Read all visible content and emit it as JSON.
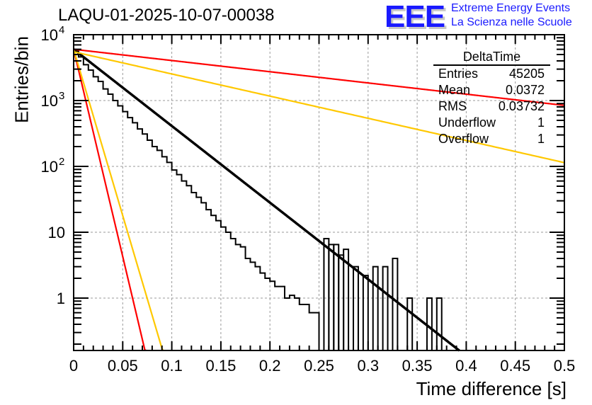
{
  "title": "LAQU-01-2025-10-07-00038",
  "logo": {
    "mark": "EEE",
    "line1": "Extreme Energy Events",
    "line2": "La Scienza nelle Scuole",
    "color": "#1a1aff"
  },
  "stats_box": {
    "name": "DeltaTime",
    "rows": [
      {
        "label": "Entries",
        "value": "45205"
      },
      {
        "label": "Mean",
        "value": "0.0372"
      },
      {
        "label": "RMS",
        "value": "0.03732"
      },
      {
        "label": "Underflow",
        "value": "1"
      },
      {
        "label": "Overflow",
        "value": "1"
      }
    ]
  },
  "chart_data": {
    "type": "histogram",
    "title": "LAQU-01-2025-10-07-00038",
    "xlabel": "Time difference [s]",
    "ylabel": "Entries/bin",
    "xlim": [
      0,
      0.5
    ],
    "ylim": [
      0.16,
      10000
    ],
    "yscale": "log",
    "grid": true,
    "x_ticks": [
      "0",
      "0.05",
      "0.1",
      "0.15",
      "0.2",
      "0.25",
      "0.3",
      "0.35",
      "0.4",
      "0.45",
      "0.5"
    ],
    "y_ticks": [
      {
        "value": 10000,
        "label": "10^4"
      },
      {
        "value": 1000,
        "label": "10^3"
      },
      {
        "value": 100,
        "label": "10^2"
      },
      {
        "value": 10,
        "label": "10"
      },
      {
        "value": 1,
        "label": "1"
      }
    ],
    "bin_width": 0.005,
    "histogram": {
      "name": "DeltaTime",
      "color": "#000000",
      "note": "approx. exponential, bins read from plot; zero bins omitted",
      "bins": [
        [
          0.0,
          5700
        ],
        [
          0.005,
          4600
        ],
        [
          0.01,
          3500
        ],
        [
          0.015,
          2900
        ],
        [
          0.02,
          2300
        ],
        [
          0.025,
          1950
        ],
        [
          0.03,
          1500
        ],
        [
          0.035,
          1250
        ],
        [
          0.04,
          1000
        ],
        [
          0.045,
          830
        ],
        [
          0.05,
          680
        ],
        [
          0.055,
          550
        ],
        [
          0.06,
          460
        ],
        [
          0.065,
          370
        ],
        [
          0.07,
          310
        ],
        [
          0.075,
          250
        ],
        [
          0.08,
          200
        ],
        [
          0.085,
          175
        ],
        [
          0.09,
          140
        ],
        [
          0.095,
          115
        ],
        [
          0.1,
          88
        ],
        [
          0.105,
          75
        ],
        [
          0.11,
          60
        ],
        [
          0.115,
          51
        ],
        [
          0.12,
          40
        ],
        [
          0.125,
          34
        ],
        [
          0.13,
          28
        ],
        [
          0.135,
          22
        ],
        [
          0.14,
          18
        ],
        [
          0.145,
          15
        ],
        [
          0.15,
          12
        ],
        [
          0.155,
          10
        ],
        [
          0.16,
          8
        ],
        [
          0.165,
          6.5
        ],
        [
          0.17,
          6
        ],
        [
          0.175,
          4
        ],
        [
          0.18,
          3.5
        ],
        [
          0.185,
          3
        ],
        [
          0.19,
          2.4
        ],
        [
          0.195,
          2
        ],
        [
          0.2,
          1.8
        ],
        [
          0.205,
          1.5
        ],
        [
          0.21,
          1.5
        ],
        [
          0.215,
          1
        ],
        [
          0.22,
          1.1
        ],
        [
          0.225,
          1
        ],
        [
          0.23,
          0.8
        ],
        [
          0.235,
          0.8
        ],
        [
          0.24,
          0.6
        ],
        [
          0.245,
          0.6
        ]
      ]
    },
    "fits": [
      {
        "name": "fit-black",
        "color": "#000000",
        "a0": 6000,
        "tau": 0.0373,
        "xmax": 0.395
      },
      {
        "name": "fit-red-steep",
        "color": "#ff0000",
        "a0": 6000,
        "tau": 0.0069,
        "xmax": 0.5
      },
      {
        "name": "fit-yellow-steep",
        "color": "#ffc800",
        "a0": 6000,
        "tau": 0.0086,
        "xmax": 0.5
      },
      {
        "name": "fit-red-shallow",
        "color": "#ff0000",
        "a0": 6000,
        "tau": 0.255,
        "xmax": 0.5
      },
      {
        "name": "fit-yellow-shallow",
        "color": "#ffc800",
        "a0": 5500,
        "tau": 0.129,
        "xmax": 0.5
      }
    ]
  }
}
